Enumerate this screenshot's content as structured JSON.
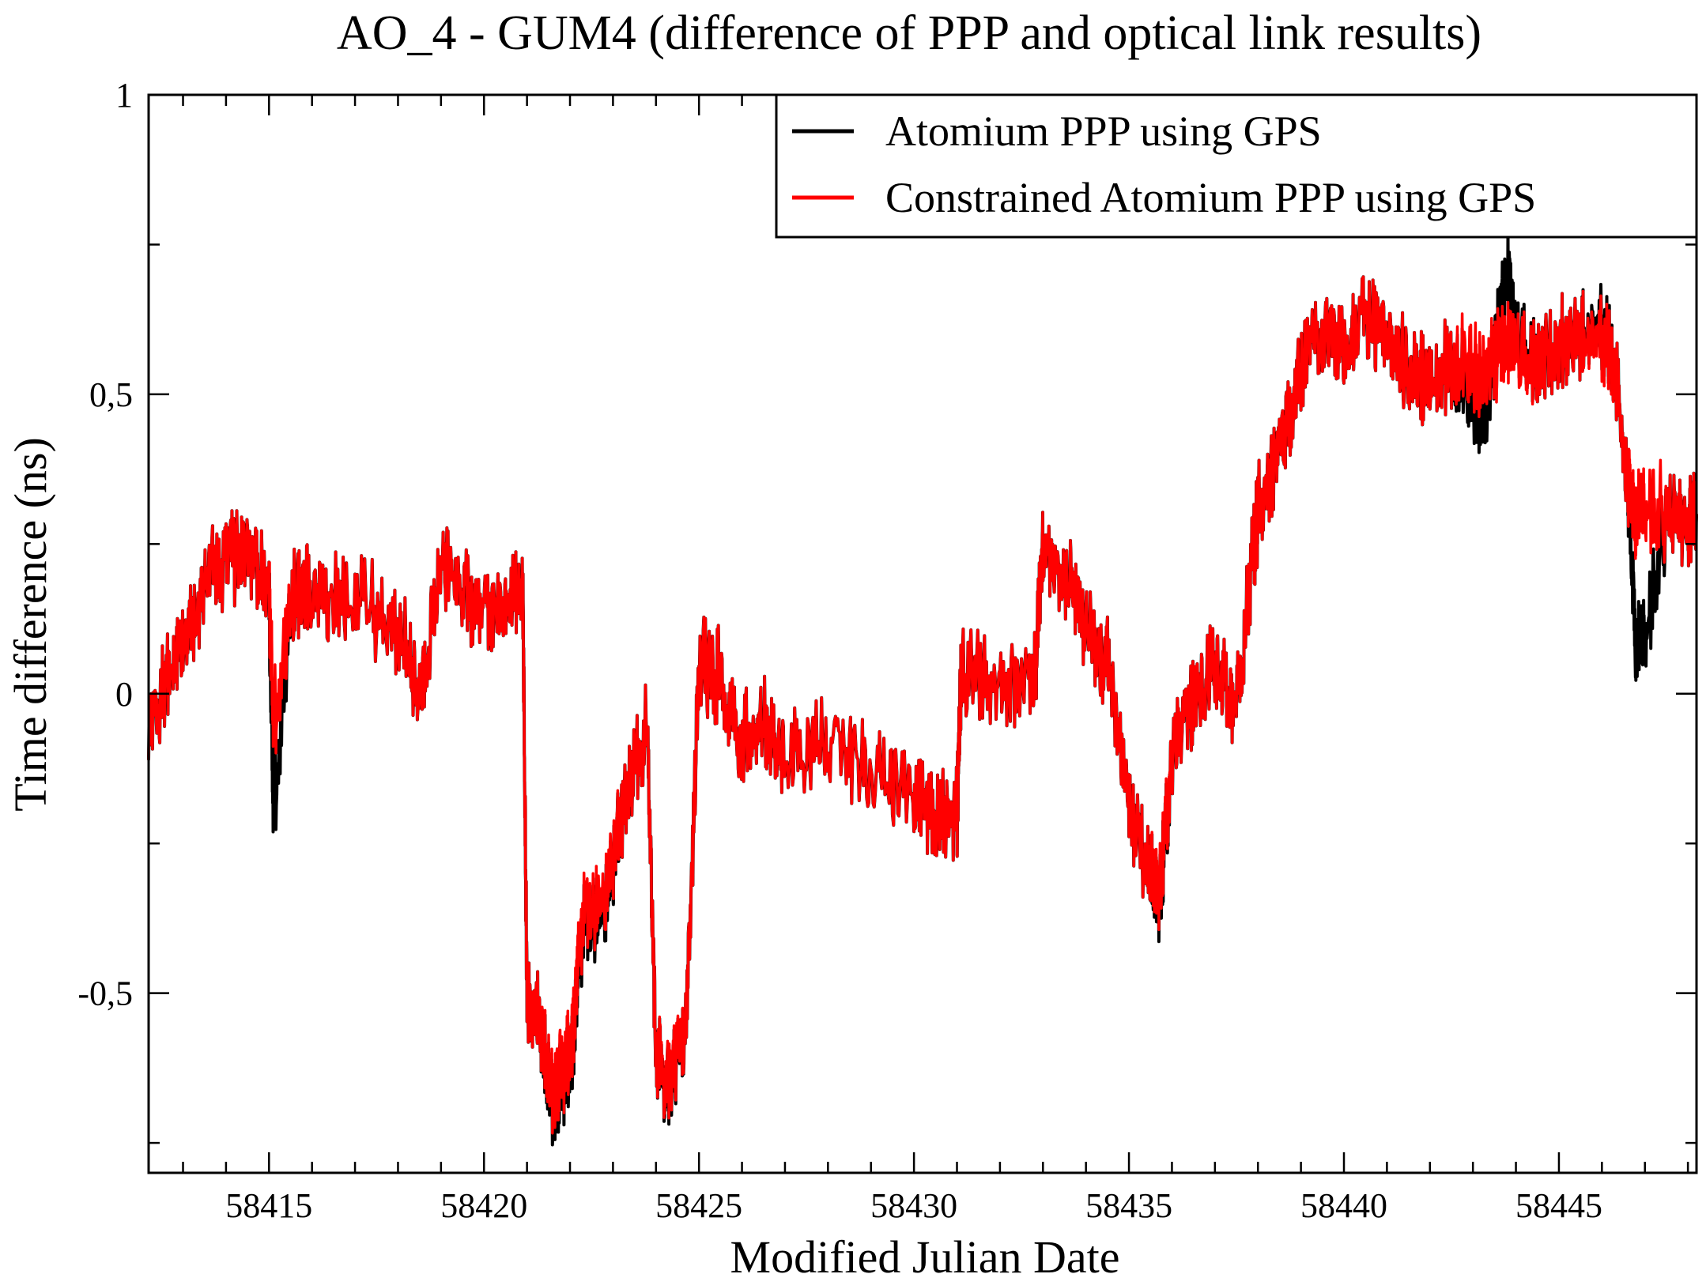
{
  "chart_data": {
    "type": "line",
    "title": "AO_4 - GUM4 (difference of PPP and optical link results)",
    "xlabel": "Modified Julian Date",
    "ylabel": "Time difference (ns)",
    "xlim": [
      58412.2,
      58448.2
    ],
    "ylim": [
      -0.8,
      1.0
    ],
    "x_major_ticks": [
      58415,
      58420,
      58425,
      58430,
      58435,
      58440,
      58445
    ],
    "x_tick_labels": [
      "58415",
      "58420",
      "58425",
      "58430",
      "58435",
      "58440",
      "58445"
    ],
    "y_major_ticks": [
      -0.5,
      0,
      0.5,
      1
    ],
    "y_tick_labels": [
      "-0,5",
      "0",
      "0,5",
      "1"
    ],
    "legend_position": "top-right",
    "series": [
      {
        "name": "Atomium PPP using GPS",
        "color": "#000000",
        "x": [
          58412.2,
          58412.6,
          58413.0,
          58413.5,
          58414.0,
          58414.5,
          58415.0,
          58415.1,
          58415.5,
          58416.0,
          58417.0,
          58418.0,
          58418.5,
          58419.0,
          58419.5,
          58420.0,
          58420.5,
          58420.9,
          58421.0,
          58421.3,
          58421.6,
          58422.0,
          58422.3,
          58422.8,
          58423.2,
          58423.8,
          58424.0,
          58424.3,
          58424.7,
          58425.0,
          58425.5,
          58426.0,
          58426.5,
          58427.0,
          58428.0,
          58429.0,
          58430.0,
          58430.5,
          58431.0,
          58431.1,
          58432.0,
          58432.8,
          58433.0,
          58433.5,
          58434.0,
          58434.5,
          58435.0,
          58435.5,
          58435.7,
          58436.0,
          58436.5,
          58437.0,
          58437.5,
          58437.9,
          58438.0,
          58438.5,
          58439.0,
          58439.5,
          58440.0,
          58440.5,
          58441.0,
          58441.5,
          58442.0,
          58442.5,
          58443.0,
          58443.3,
          58443.6,
          58443.8,
          58444.0,
          58444.5,
          58445.0,
          58445.5,
          58446.0,
          58446.3,
          58446.6,
          58446.8,
          58447.0,
          58447.5,
          58448.0,
          58448.2
        ],
        "values": [
          -0.05,
          0.02,
          0.08,
          0.18,
          0.22,
          0.25,
          0.18,
          -0.2,
          0.16,
          0.17,
          0.16,
          0.12,
          0.0,
          0.22,
          0.18,
          0.12,
          0.15,
          0.2,
          -0.5,
          -0.55,
          -0.68,
          -0.62,
          -0.4,
          -0.35,
          -0.2,
          -0.05,
          -0.6,
          -0.65,
          -0.55,
          0.05,
          0.03,
          -0.08,
          -0.05,
          -0.1,
          -0.08,
          -0.12,
          -0.18,
          -0.2,
          -0.2,
          0.05,
          0.0,
          0.02,
          0.25,
          0.2,
          0.12,
          0.05,
          -0.2,
          -0.3,
          -0.35,
          -0.12,
          0.0,
          0.05,
          -0.02,
          0.25,
          0.3,
          0.4,
          0.55,
          0.6,
          0.58,
          0.62,
          0.6,
          0.55,
          0.52,
          0.55,
          0.5,
          0.45,
          0.62,
          0.72,
          0.6,
          0.55,
          0.58,
          0.6,
          0.62,
          0.55,
          0.35,
          0.08,
          0.1,
          0.3,
          0.28,
          0.3
        ]
      },
      {
        "name": "Constrained Atomium PPP using GPS",
        "color": "#ff0000",
        "x": [
          58412.2,
          58412.6,
          58413.0,
          58413.5,
          58414.0,
          58414.5,
          58415.0,
          58415.1,
          58415.5,
          58416.0,
          58417.0,
          58418.0,
          58418.5,
          58419.0,
          58419.5,
          58420.0,
          58420.5,
          58420.9,
          58421.0,
          58421.3,
          58421.6,
          58422.0,
          58422.3,
          58422.8,
          58423.2,
          58423.8,
          58424.0,
          58424.3,
          58424.7,
          58425.0,
          58425.5,
          58426.0,
          58426.5,
          58427.0,
          58428.0,
          58429.0,
          58430.0,
          58430.5,
          58431.0,
          58431.1,
          58432.0,
          58432.8,
          58433.0,
          58433.5,
          58434.0,
          58434.5,
          58435.0,
          58435.5,
          58435.7,
          58436.0,
          58436.5,
          58437.0,
          58437.5,
          58437.9,
          58438.0,
          58438.5,
          58439.0,
          58439.5,
          58440.0,
          58440.5,
          58441.0,
          58441.5,
          58442.0,
          58442.5,
          58443.0,
          58443.3,
          58443.6,
          58443.8,
          58444.0,
          58444.5,
          58445.0,
          58445.5,
          58446.0,
          58446.3,
          58446.6,
          58446.8,
          58447.0,
          58447.5,
          58448.0,
          58448.2
        ],
        "values": [
          -0.05,
          0.02,
          0.08,
          0.18,
          0.22,
          0.25,
          0.18,
          -0.05,
          0.16,
          0.17,
          0.16,
          0.12,
          0.0,
          0.22,
          0.18,
          0.12,
          0.15,
          0.2,
          -0.5,
          -0.55,
          -0.66,
          -0.6,
          -0.38,
          -0.33,
          -0.2,
          -0.05,
          -0.6,
          -0.64,
          -0.55,
          0.05,
          0.03,
          -0.08,
          -0.05,
          -0.1,
          -0.08,
          -0.12,
          -0.18,
          -0.2,
          -0.2,
          0.05,
          0.0,
          0.02,
          0.25,
          0.2,
          0.12,
          0.05,
          -0.2,
          -0.3,
          -0.33,
          -0.12,
          0.0,
          0.05,
          -0.02,
          0.25,
          0.3,
          0.4,
          0.55,
          0.6,
          0.58,
          0.62,
          0.6,
          0.55,
          0.52,
          0.55,
          0.55,
          0.52,
          0.58,
          0.6,
          0.58,
          0.55,
          0.58,
          0.6,
          0.6,
          0.55,
          0.35,
          0.3,
          0.32,
          0.3,
          0.28,
          0.3
        ]
      }
    ]
  }
}
